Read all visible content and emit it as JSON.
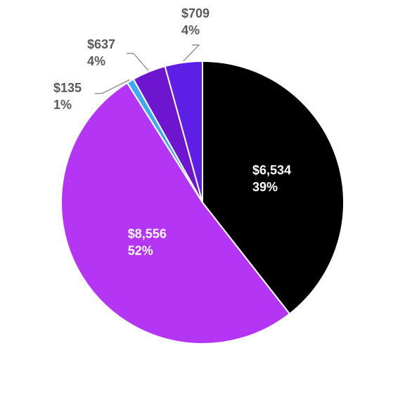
{
  "chart_data": {
    "type": "pie",
    "categories": [
      null,
      null,
      null,
      null,
      null
    ],
    "values": [
      6534,
      8556,
      135,
      637,
      709
    ],
    "value_labels": [
      "$6,534",
      "$8,556",
      "$135",
      "$637",
      "$709"
    ],
    "shares": [
      {
        "value": 39,
        "label": "39%"
      },
      {
        "value": 52,
        "label": "52%"
      },
      {
        "value": 1,
        "label": "1%"
      },
      {
        "value": 4,
        "label": "4%"
      },
      {
        "value": 4,
        "label": "4%"
      }
    ],
    "colors": [
      "#000000",
      "#b535f5",
      "#3ca9f5",
      "#6e15cf",
      "#5d1fe6"
    ]
  }
}
